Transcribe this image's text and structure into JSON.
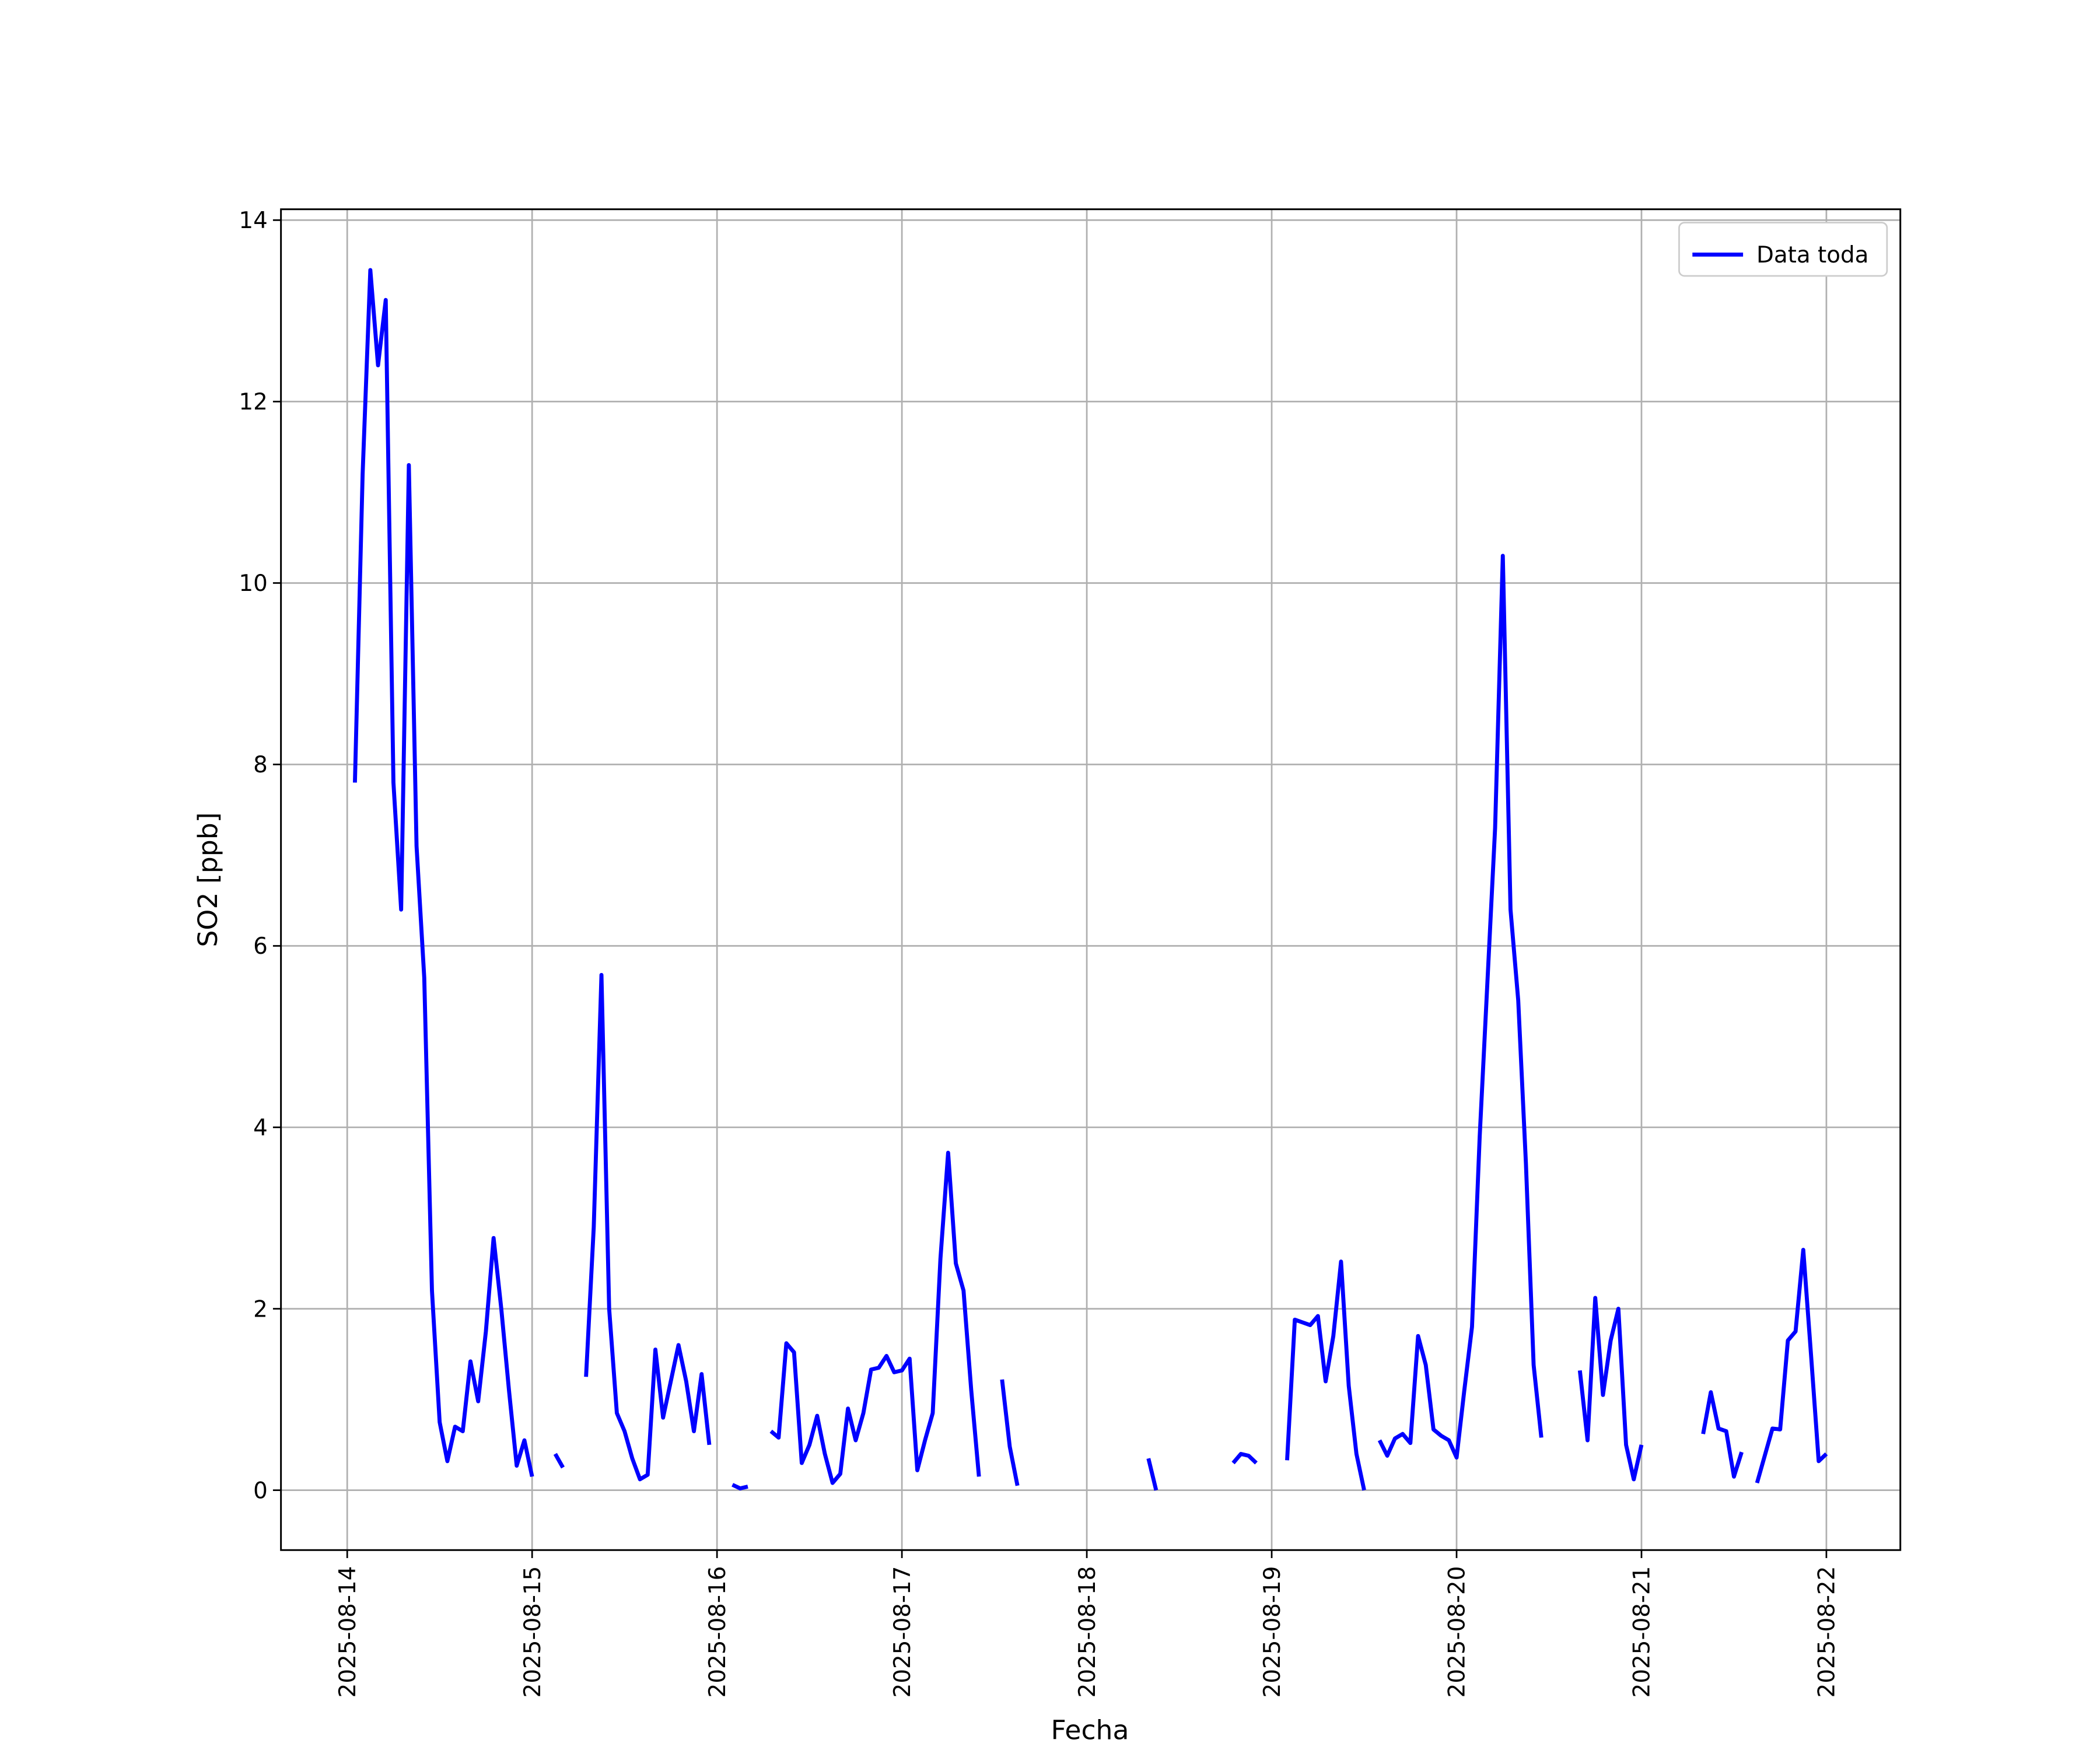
{
  "chart_data": {
    "type": "line",
    "xlabel": "Fecha",
    "ylabel": "SO2 [ppb]",
    "x": [
      1,
      2,
      3,
      4,
      5,
      6,
      7,
      8,
      9,
      10,
      11,
      12,
      13,
      14,
      15,
      16,
      17,
      18,
      19,
      20,
      21,
      22,
      23,
      24,
      25,
      26,
      27,
      28,
      29,
      30,
      31,
      32,
      33,
      34,
      35,
      36,
      37,
      38,
      39,
      40,
      41,
      42,
      43,
      44,
      45,
      46,
      47,
      48,
      49,
      50,
      51,
      52,
      53,
      54,
      55,
      56,
      57,
      58,
      59,
      60,
      61,
      62,
      63,
      64,
      65,
      66,
      67,
      68,
      69,
      70,
      71,
      72,
      73,
      74,
      75,
      76,
      77,
      78,
      79,
      80,
      81,
      82,
      83,
      84,
      85,
      86,
      87,
      88,
      89,
      90,
      91,
      92,
      93,
      94,
      95,
      96,
      97,
      98,
      99,
      100,
      101,
      102,
      103,
      104,
      105,
      106,
      107,
      108,
      109,
      110,
      111,
      112,
      113,
      114,
      115,
      116,
      117,
      118,
      119,
      120,
      121,
      122,
      123,
      124,
      125,
      126,
      127,
      128,
      129,
      130,
      131,
      132,
      133,
      134,
      135,
      136,
      137,
      138,
      139,
      140,
      141,
      142,
      143,
      144,
      145,
      146,
      147,
      148,
      149,
      150,
      151,
      152,
      153,
      154,
      155,
      156,
      157,
      158,
      159,
      160,
      161,
      162,
      163,
      164,
      165,
      166,
      167,
      168,
      169,
      170,
      171,
      172,
      173,
      174,
      175,
      176,
      177,
      178,
      179,
      180,
      181,
      182,
      183,
      184,
      185,
      186,
      187,
      188,
      189,
      190,
      191,
      192
    ],
    "series": [
      {
        "name": "Data toda",
        "color": "#0000ff",
        "values": [
          7.8,
          11.2,
          13.45,
          12.4,
          13.12,
          7.8,
          6.4,
          11.3,
          7.1,
          5.65,
          2.2,
          0.75,
          0.32,
          0.7,
          0.65,
          1.42,
          0.98,
          1.75,
          2.78,
          2.0,
          1.1,
          0.27,
          0.55,
          0.15,
          null,
          null,
          0.4,
          0.25,
          null,
          null,
          1.25,
          2.9,
          5.68,
          2.0,
          0.85,
          0.65,
          0.35,
          0.12,
          0.17,
          1.55,
          0.8,
          1.2,
          1.6,
          1.2,
          0.65,
          1.28,
          0.5,
          null,
          null,
          0.06,
          0.02,
          0.04,
          null,
          null,
          0.65,
          0.58,
          1.62,
          1.52,
          0.3,
          0.5,
          0.82,
          0.4,
          0.08,
          0.18,
          0.9,
          0.55,
          0.85,
          1.33,
          1.35,
          1.48,
          1.3,
          1.32,
          1.45,
          0.22,
          0.55,
          0.85,
          2.55,
          3.72,
          2.5,
          2.2,
          1.1,
          0.15,
          null,
          null,
          1.22,
          0.48,
          0.05,
          null,
          null,
          null,
          null,
          null,
          null,
          null,
          null,
          null,
          null,
          null,
          null,
          null,
          null,
          null,
          null,
          0.35,
          0.0,
          null,
          null,
          null,
          null,
          null,
          null,
          null,
          null,
          null,
          0.3,
          0.4,
          0.38,
          0.3,
          null,
          null,
          null,
          0.33,
          1.88,
          1.85,
          1.82,
          1.92,
          1.2,
          1.7,
          2.52,
          1.15,
          0.4,
          0.0,
          null,
          0.55,
          0.38,
          0.57,
          0.62,
          0.52,
          1.7,
          1.38,
          0.67,
          0.6,
          0.55,
          0.36,
          1.1,
          1.8,
          3.9,
          5.6,
          7.3,
          10.3,
          6.4,
          5.4,
          3.6,
          1.38,
          0.58,
          null,
          null,
          null,
          null,
          1.32,
          0.55,
          2.12,
          1.05,
          1.65,
          2.0,
          0.5,
          0.12,
          0.5,
          null,
          null,
          null,
          null,
          null,
          null,
          null,
          0.62,
          1.08,
          0.68,
          0.65,
          0.15,
          0.42,
          null,
          0.08,
          0.38,
          0.68,
          0.67,
          1.65,
          1.75,
          2.65,
          1.5,
          0.32,
          0.4
        ]
      }
    ],
    "xlim": [
      -8.6,
      201.6
    ],
    "xticks": [
      {
        "value": 0,
        "label": "2025-08-14"
      },
      {
        "value": 24,
        "label": "2025-08-15"
      },
      {
        "value": 48,
        "label": "2025-08-16"
      },
      {
        "value": 72,
        "label": "2025-08-17"
      },
      {
        "value": 96,
        "label": "2025-08-18"
      },
      {
        "value": 120,
        "label": "2025-08-19"
      },
      {
        "value": 144,
        "label": "2025-08-20"
      },
      {
        "value": 168,
        "label": "2025-08-21"
      },
      {
        "value": 192,
        "label": "2025-08-22"
      }
    ],
    "ylim": [
      -0.66,
      14.12
    ],
    "yticks": [
      0,
      2,
      4,
      6,
      8,
      10,
      12,
      14
    ],
    "grid": true,
    "legend_loc": "upper right"
  }
}
